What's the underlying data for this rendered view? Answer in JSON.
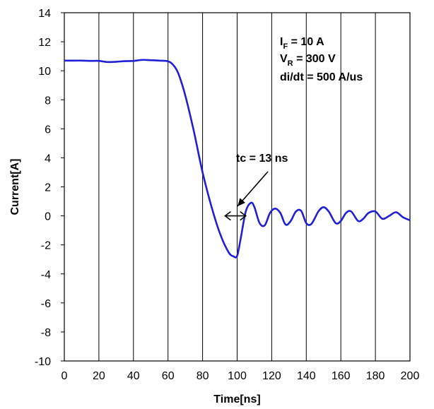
{
  "chart_data": {
    "type": "line",
    "xlabel": "Time[ns]",
    "ylabel": "Current[A]",
    "xlim": [
      0,
      200
    ],
    "ylim": [
      -10,
      14
    ],
    "x_ticks": [
      0,
      20,
      40,
      60,
      80,
      100,
      120,
      140,
      160,
      180,
      200
    ],
    "y_ticks": [
      -10,
      -8,
      -6,
      -4,
      -2,
      0,
      2,
      4,
      6,
      8,
      10,
      12,
      14
    ],
    "grid": {
      "vertical": true,
      "horizontal": false
    },
    "legend": "none",
    "series": [
      {
        "color": "#1f1fd6",
        "x": [
          0,
          5,
          10,
          15,
          20,
          25,
          30,
          35,
          40,
          45,
          50,
          55,
          60,
          63,
          66,
          70,
          75,
          80,
          85,
          90,
          95,
          98,
          100,
          102,
          105,
          108,
          110,
          113,
          116,
          119,
          122,
          125,
          128,
          131,
          134,
          137,
          140,
          143,
          147,
          150,
          153,
          157,
          160,
          163,
          166,
          170,
          173,
          176,
          180,
          184,
          188,
          192,
          196,
          200
        ],
        "y": [
          10.7,
          10.7,
          10.7,
          10.68,
          10.68,
          10.6,
          10.62,
          10.66,
          10.68,
          10.75,
          10.73,
          10.7,
          10.65,
          10.4,
          9.8,
          8.3,
          5.8,
          3.0,
          0.7,
          -1.2,
          -2.5,
          -2.8,
          -2.75,
          -1.6,
          0.3,
          0.9,
          0.6,
          -0.5,
          -0.65,
          0.2,
          0.5,
          0.2,
          -0.6,
          -0.35,
          0.3,
          0.35,
          -0.5,
          -0.55,
          0.3,
          0.6,
          0.3,
          -0.5,
          -0.35,
          0.2,
          0.3,
          -0.35,
          -0.2,
          0.2,
          0.3,
          -0.2,
          0.0,
          0.25,
          -0.1,
          -0.3
        ]
      }
    ],
    "annotations": {
      "conditions": {
        "i_main": "I",
        "i_sub": "F",
        "i_rest": " = 10 A",
        "v_main": "V",
        "v_sub": "R",
        "v_rest": " = 300 V",
        "didt": "di/dt = 500 A/us"
      },
      "tc_label": "tc = 13 ns",
      "tc_span": [
        93,
        105
      ]
    },
    "colors": {
      "line": "#1f1fd6",
      "grid": "#000000",
      "text": "#000000"
    }
  }
}
